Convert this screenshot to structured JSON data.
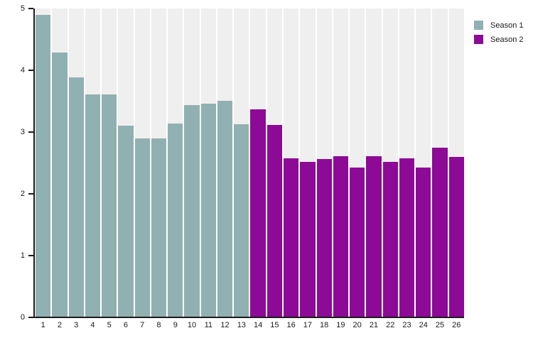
{
  "chart_data": {
    "type": "bar",
    "title": "",
    "xlabel": "",
    "ylabel": "",
    "categories": [
      "1",
      "2",
      "3",
      "4",
      "5",
      "6",
      "7",
      "8",
      "9",
      "10",
      "11",
      "12",
      "13",
      "14",
      "15",
      "16",
      "17",
      "18",
      "19",
      "20",
      "21",
      "22",
      "23",
      "24",
      "25",
      "26"
    ],
    "series": [
      {
        "name": "Season 1",
        "color": "#91b0b1",
        "start_category": "1",
        "values": [
          4.9,
          4.29,
          3.88,
          3.61,
          3.61,
          3.1,
          2.9,
          2.9,
          3.14,
          3.44,
          3.46,
          3.51,
          3.13
        ]
      },
      {
        "name": "Season 2",
        "color": "#8c0a96",
        "start_category": "14",
        "values": [
          3.37,
          3.11,
          2.57,
          2.52,
          2.56,
          2.61,
          2.42,
          2.61,
          2.52,
          2.57,
          2.42,
          2.75,
          2.6
        ]
      }
    ],
    "ylim": [
      0,
      5
    ],
    "yticks": [
      "0",
      "1",
      "2",
      "3",
      "4",
      "5"
    ],
    "grid": false,
    "legend_position": "top-right",
    "plot_background": "#f0efef",
    "column_gap_color": "#ffffff",
    "axis_color": "#1a1a1a"
  }
}
